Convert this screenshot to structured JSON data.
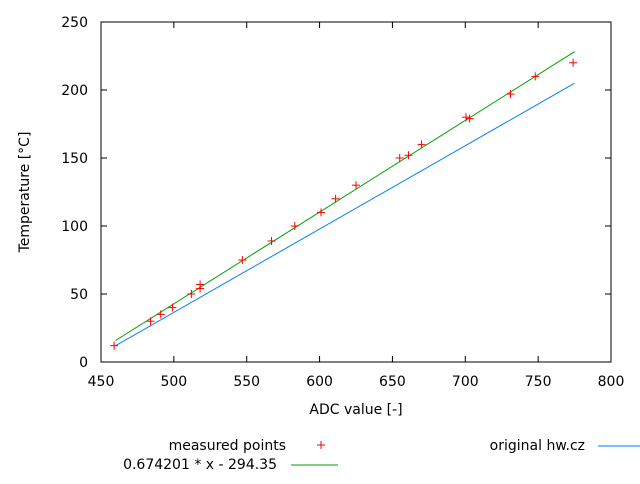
{
  "chart_data": {
    "type": "scatter",
    "title": "",
    "xlabel": "ADC value [-]",
    "ylabel": "Temperature [°C]",
    "xlim": [
      450,
      800
    ],
    "ylim": [
      0,
      250
    ],
    "xticks": [
      450,
      500,
      550,
      600,
      650,
      700,
      750,
      800
    ],
    "yticks": [
      0,
      50,
      100,
      150,
      200,
      250
    ],
    "grid": false,
    "legend_position": "bottom",
    "series": [
      {
        "name": "measured points",
        "kind": "points",
        "marker": "plus",
        "color": "#ff0000",
        "points": [
          [
            459,
            12
          ],
          [
            484,
            30
          ],
          [
            491,
            35
          ],
          [
            499,
            40
          ],
          [
            512,
            50
          ],
          [
            518,
            54
          ],
          [
            518,
            57
          ],
          [
            547,
            75
          ],
          [
            567,
            89
          ],
          [
            583,
            100
          ],
          [
            601,
            110
          ],
          [
            611,
            120
          ],
          [
            625,
            130
          ],
          [
            655,
            150
          ],
          [
            661,
            152
          ],
          [
            670,
            160
          ],
          [
            700.5,
            180
          ],
          [
            703,
            179
          ],
          [
            731,
            197
          ],
          [
            748,
            210
          ],
          [
            774,
            220
          ]
        ]
      },
      {
        "name": "original hw.cz",
        "kind": "line",
        "color": "#0080ff",
        "points": [
          [
            460,
            12
          ],
          [
            775,
            205
          ]
        ]
      },
      {
        "name": "0.674201 * x - 294.35",
        "kind": "line",
        "color": "#00a000",
        "points": [
          [
            460,
            15.8
          ],
          [
            775,
            228.2
          ]
        ]
      }
    ]
  }
}
